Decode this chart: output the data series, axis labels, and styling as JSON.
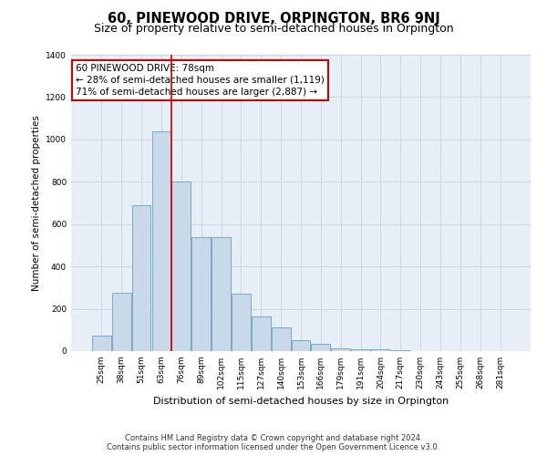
{
  "title": "60, PINEWOOD DRIVE, ORPINGTON, BR6 9NJ",
  "subtitle": "Size of property relative to semi-detached houses in Orpington",
  "xlabel": "Distribution of semi-detached houses by size in Orpington",
  "ylabel": "Number of semi-detached properties",
  "footer_line1": "Contains HM Land Registry data © Crown copyright and database right 2024.",
  "footer_line2": "Contains public sector information licensed under the Open Government Licence v3.0.",
  "annotation_title": "60 PINEWOOD DRIVE: 78sqm",
  "annotation_line1": "← 28% of semi-detached houses are smaller (1,119)",
  "annotation_line2": "71% of semi-detached houses are larger (2,887) →",
  "bar_labels": [
    "25sqm",
    "38sqm",
    "51sqm",
    "63sqm",
    "76sqm",
    "89sqm",
    "102sqm",
    "115sqm",
    "127sqm",
    "140sqm",
    "153sqm",
    "166sqm",
    "179sqm",
    "191sqm",
    "204sqm",
    "217sqm",
    "230sqm",
    "243sqm",
    "255sqm",
    "268sqm",
    "281sqm"
  ],
  "bar_values": [
    75,
    275,
    690,
    1040,
    800,
    540,
    540,
    270,
    165,
    110,
    50,
    35,
    12,
    10,
    8,
    5,
    2,
    2,
    1,
    0,
    0
  ],
  "bar_color": "#c9d9ea",
  "bar_edge_color": "#6a9fc0",
  "vline_color": "#cc0000",
  "vline_bar_index": 4,
  "box_edge_color": "#cc0000",
  "ylim": [
    0,
    1400
  ],
  "yticks": [
    0,
    200,
    400,
    600,
    800,
    1000,
    1200,
    1400
  ],
  "grid_color": "#ccd5e0",
  "background_color": "#e8eef5",
  "title_fontsize": 10.5,
  "subtitle_fontsize": 9,
  "annotation_fontsize": 7.5,
  "tick_fontsize": 6.5,
  "ylabel_fontsize": 7.5,
  "xlabel_fontsize": 8,
  "footer_fontsize": 6
}
